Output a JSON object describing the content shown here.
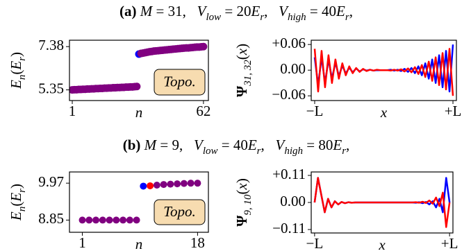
{
  "chart_data": [
    {
      "type": "scatter",
      "title": [
        {
          "text": "(a) ",
          "style": "bold"
        },
        {
          "text": "M",
          "style": "italic"
        },
        {
          "text": " = 31,   ",
          "style": "normal"
        },
        {
          "text": "V",
          "style": "italic"
        },
        {
          "text": "low",
          "style": "sub"
        },
        {
          "text": " = 20",
          "style": "normal"
        },
        {
          "text": "E",
          "style": "italic"
        },
        {
          "text": "r",
          "style": "sub"
        },
        {
          "text": ",   ",
          "style": "normal"
        },
        {
          "text": "V",
          "style": "italic"
        },
        {
          "text": "high",
          "style": "sub"
        },
        {
          "text": " = 40",
          "style": "normal"
        },
        {
          "text": "E",
          "style": "italic"
        },
        {
          "text": "r",
          "style": "sub"
        },
        {
          "text": ",",
          "style": "normal"
        }
      ],
      "ylabel": [
        {
          "text": "E",
          "style": "italic"
        },
        {
          "text": "n",
          "style": "sub"
        },
        {
          "text": "(",
          "style": "normal"
        },
        {
          "text": "E",
          "style": "italic"
        },
        {
          "text": "r",
          "style": "sub"
        },
        {
          "text": ")",
          "style": "normal"
        }
      ],
      "xlabel": "n",
      "annotation": "Topo.",
      "x": [
        1,
        2,
        3,
        4,
        5,
        6,
        7,
        8,
        9,
        10,
        11,
        12,
        13,
        14,
        15,
        16,
        17,
        18,
        19,
        20,
        21,
        22,
        23,
        24,
        25,
        26,
        27,
        28,
        29,
        30,
        31,
        32,
        33,
        34,
        35,
        36,
        37,
        38,
        39,
        40,
        41,
        42,
        43,
        44,
        45,
        46,
        47,
        48,
        49,
        50,
        51,
        52,
        53,
        54,
        55,
        56,
        57,
        58,
        59,
        60,
        61,
        62
      ],
      "values": [
        5.35,
        5.36,
        5.36,
        5.37,
        5.37,
        5.38,
        5.38,
        5.39,
        5.39,
        5.4,
        5.4,
        5.41,
        5.41,
        5.42,
        5.42,
        5.43,
        5.43,
        5.44,
        5.44,
        5.45,
        5.45,
        5.46,
        5.46,
        5.47,
        5.47,
        5.48,
        5.48,
        5.49,
        5.49,
        5.5,
        5.51,
        7.03,
        7.06,
        7.08,
        7.1,
        7.12,
        7.14,
        7.15,
        7.17,
        7.18,
        7.19,
        7.2,
        7.21,
        7.22,
        7.23,
        7.24,
        7.25,
        7.26,
        7.27,
        7.28,
        7.29,
        7.3,
        7.31,
        7.32,
        7.32,
        7.33,
        7.34,
        7.35,
        7.36,
        7.36,
        7.37,
        7.38
      ],
      "color": "#800080",
      "highlights": [
        {
          "index": 31,
          "color": "#0000ff"
        }
      ],
      "xlim": [
        -0.3,
        64.3
      ],
      "xticks": [
        1,
        62
      ],
      "ylim": [
        4.85,
        7.68
      ],
      "yticks": [
        5.35,
        7.38
      ]
    },
    {
      "type": "line",
      "ylabel": [
        {
          "text": "Ψ",
          "style": "bold"
        },
        {
          "text": "31, 32",
          "style": "sub"
        },
        {
          "text": "(",
          "style": "normal"
        },
        {
          "text": "x",
          "style": "italic"
        },
        {
          "text": ")",
          "style": "normal"
        }
      ],
      "xlabel": "x",
      "x": [
        -1,
        -0.95,
        -0.9,
        -0.85,
        -0.8,
        -0.75,
        -0.7,
        -0.65,
        -0.6,
        -0.55,
        -0.5,
        -0.45,
        -0.4,
        -0.35,
        -0.3,
        -0.25,
        -0.2,
        -0.15,
        -0.1,
        -0.05,
        0,
        0.05,
        0.1,
        0.15,
        0.2,
        0.25,
        0.3,
        0.35,
        0.4,
        0.45,
        0.5,
        0.55,
        0.6,
        0.65,
        0.7,
        0.75,
        0.8,
        0.85,
        0.9,
        0.95,
        1
      ],
      "series": [
        {
          "color": "#0000ff",
          "values": [
            0.03,
            -0.035,
            0.03,
            -0.03,
            0.025,
            -0.02,
            0.018,
            -0.014,
            0.011,
            -0.008,
            0.006,
            -0.005,
            0.004,
            -0.003,
            0.002,
            -0.001,
            0.001,
            -0.001,
            0,
            0,
            0,
            0,
            0.001,
            -0.001,
            0.001,
            -0.002,
            0.003,
            -0.004,
            0.005,
            -0.007,
            0.009,
            -0.012,
            0.016,
            -0.02,
            0.025,
            -0.03,
            0.035,
            -0.04,
            0.045,
            -0.05,
            0.06
          ]
        },
        {
          "color": "#ff0000",
          "values": [
            0.05,
            -0.05,
            0.045,
            -0.04,
            0.035,
            -0.03,
            0.025,
            -0.02,
            0.016,
            -0.012,
            0.009,
            -0.007,
            0.005,
            -0.004,
            0.003,
            -0.002,
            0.001,
            -0.001,
            0.001,
            0,
            0,
            0,
            -0.001,
            0.001,
            -0.001,
            0.002,
            -0.003,
            0.004,
            -0.005,
            0.007,
            -0.009,
            0.012,
            -0.016,
            0.02,
            -0.025,
            0.03,
            -0.035,
            0.04,
            -0.045,
            0.05,
            -0.06
          ]
        }
      ],
      "xlim": [
        -1.05,
        1.05
      ],
      "xticks": [
        {
          "value": -1,
          "label": "−L"
        },
        {
          "value": 1,
          "label": "+L"
        }
      ],
      "ylim": [
        -0.071,
        0.07
      ],
      "yticks": [
        {
          "value": -0.06,
          "label": "−0.06"
        },
        {
          "value": 0,
          "label": "0.00"
        },
        {
          "value": 0.06,
          "label": "+0.06"
        }
      ]
    },
    {
      "type": "scatter",
      "title": [
        {
          "text": "(b) ",
          "style": "bold"
        },
        {
          "text": "M",
          "style": "italic"
        },
        {
          "text": " = 9,   ",
          "style": "normal"
        },
        {
          "text": "V",
          "style": "italic"
        },
        {
          "text": "low",
          "style": "sub"
        },
        {
          "text": " = 40",
          "style": "normal"
        },
        {
          "text": "E",
          "style": "italic"
        },
        {
          "text": "r",
          "style": "sub"
        },
        {
          "text": ",   ",
          "style": "normal"
        },
        {
          "text": "V",
          "style": "italic"
        },
        {
          "text": "high",
          "style": "sub"
        },
        {
          "text": " = 80",
          "style": "normal"
        },
        {
          "text": "E",
          "style": "italic"
        },
        {
          "text": "r",
          "style": "sub"
        },
        {
          "text": ",",
          "style": "normal"
        }
      ],
      "ylabel": [
        {
          "text": "E",
          "style": "italic"
        },
        {
          "text": "n",
          "style": "sub"
        },
        {
          "text": "(",
          "style": "normal"
        },
        {
          "text": "E",
          "style": "italic"
        },
        {
          "text": "r",
          "style": "sub"
        },
        {
          "text": ")",
          "style": "normal"
        }
      ],
      "xlabel": "n",
      "annotation": "Topo.",
      "x": [
        1,
        2,
        3,
        4,
        5,
        6,
        7,
        8,
        9,
        10,
        11,
        12,
        13,
        14,
        15,
        16,
        17,
        18
      ],
      "values": [
        8.85,
        8.85,
        8.85,
        8.85,
        8.85,
        8.85,
        8.85,
        8.85,
        8.85,
        9.88,
        9.89,
        9.91,
        9.93,
        9.94,
        9.95,
        9.96,
        9.97,
        9.97
      ],
      "color": "#800080",
      "highlights": [
        {
          "index": 9,
          "color": "#0000ff"
        },
        {
          "index": 10,
          "color": "#ff0000"
        }
      ],
      "xlim": [
        -0.9,
        19.6
      ],
      "xticks": [
        1,
        18
      ],
      "ylim": [
        8.48,
        10.31
      ],
      "yticks": [
        8.85,
        9.97
      ]
    },
    {
      "type": "line",
      "ylabel": [
        {
          "text": "Ψ",
          "style": "bold"
        },
        {
          "text": "9, 10",
          "style": "sub"
        },
        {
          "text": "(",
          "style": "normal"
        },
        {
          "text": "x",
          "style": "italic"
        },
        {
          "text": ")",
          "style": "normal"
        }
      ],
      "xlabel": "x",
      "x": [
        -1,
        -0.95,
        -0.9,
        -0.85,
        -0.8,
        -0.75,
        -0.7,
        -0.65,
        -0.6,
        -0.55,
        -0.5,
        -0.45,
        -0.4,
        -0.35,
        -0.3,
        -0.25,
        -0.2,
        -0.15,
        -0.1,
        -0.05,
        0,
        0.05,
        0.1,
        0.15,
        0.2,
        0.25,
        0.3,
        0.35,
        0.4,
        0.45,
        0.5,
        0.55,
        0.6,
        0.65,
        0.7,
        0.75,
        0.8,
        0.85,
        0.9,
        0.95,
        1
      ],
      "series": [
        {
          "color": "#0000ff",
          "values": [
            0,
            0.1,
            0.03,
            -0.04,
            0.015,
            -0.02,
            0.005,
            -0.008,
            0.002,
            -0.003,
            0.001,
            -0.001,
            0,
            0,
            0,
            0,
            0,
            0,
            0,
            0,
            0,
            0,
            0,
            0,
            0,
            0,
            0,
            0,
            0,
            0,
            -0.001,
            0.001,
            -0.003,
            0.002,
            -0.008,
            0.005,
            -0.02,
            0.015,
            -0.04,
            0.1,
            0
          ]
        },
        {
          "color": "#ff0000",
          "values": [
            0,
            0.1,
            0.03,
            -0.04,
            0.015,
            -0.02,
            0.005,
            -0.008,
            0.002,
            -0.003,
            0.001,
            -0.001,
            0,
            0,
            0,
            0,
            0,
            0,
            0,
            0,
            0,
            0,
            0,
            0,
            0,
            0,
            0,
            0,
            0,
            0,
            0.001,
            -0.001,
            0.003,
            -0.002,
            0.008,
            -0.005,
            0.02,
            -0.015,
            0.04,
            -0.1,
            0
          ]
        }
      ],
      "xlim": [
        -1.05,
        1.05
      ],
      "xticks": [
        {
          "value": -1,
          "label": "−L"
        },
        {
          "value": 1,
          "label": "+L"
        }
      ],
      "ylim": [
        -0.124,
        0.124
      ],
      "yticks": [
        {
          "value": -0.11,
          "label": "−0.11"
        },
        {
          "value": 0,
          "label": "0.00"
        },
        {
          "value": 0.11,
          "label": "+0.11"
        }
      ]
    }
  ]
}
